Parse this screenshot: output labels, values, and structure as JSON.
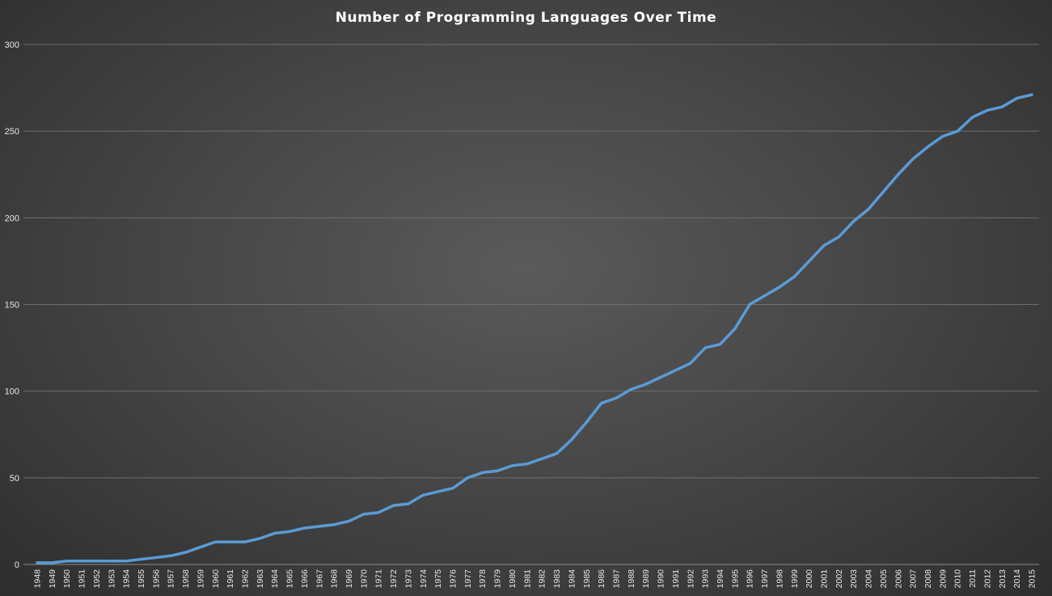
{
  "chart_data": {
    "type": "line",
    "title": "Number of Programming Languages Over Time",
    "xlabel": "",
    "ylabel": "",
    "ylim": [
      0,
      300
    ],
    "yticks": [
      0,
      50,
      100,
      150,
      200,
      250,
      300
    ],
    "grid": true,
    "legend": "none",
    "x": [
      "1948",
      "1949",
      "1950",
      "1951",
      "1952",
      "1953",
      "1954",
      "1955",
      "1956",
      "1957",
      "1958",
      "1959",
      "1960",
      "1961",
      "1962",
      "1963",
      "1964",
      "1965",
      "1966",
      "1967",
      "1968",
      "1969",
      "1970",
      "1971",
      "1972",
      "1973",
      "1974",
      "1975",
      "1976",
      "1977",
      "1978",
      "1979",
      "1980",
      "1981",
      "1982",
      "1983",
      "1984",
      "1985",
      "1986",
      "1987",
      "1988",
      "1989",
      "1990",
      "1991",
      "1992",
      "1993",
      "1994",
      "1995",
      "1996",
      "1997",
      "1998",
      "1999",
      "2000",
      "2001",
      "2002",
      "2003",
      "2004",
      "2005",
      "2006",
      "2007",
      "2008",
      "2009",
      "2010",
      "2011",
      "2012",
      "2013",
      "2014",
      "2015"
    ],
    "series": [
      {
        "color": "#5b9bd5",
        "values": [
          1,
          1,
          2,
          2,
          2,
          2,
          2,
          3,
          4,
          5,
          7,
          10,
          13,
          13,
          13,
          15,
          18,
          19,
          21,
          22,
          23,
          25,
          29,
          30,
          34,
          35,
          40,
          42,
          44,
          50,
          53,
          54,
          57,
          58,
          61,
          64,
          72,
          82,
          93,
          96,
          101,
          104,
          108,
          112,
          116,
          125,
          127,
          136,
          150,
          155,
          160,
          166,
          175,
          184,
          189,
          198,
          205,
          215,
          225,
          234,
          241,
          247,
          250,
          258,
          262,
          264,
          269,
          271
        ]
      }
    ]
  }
}
